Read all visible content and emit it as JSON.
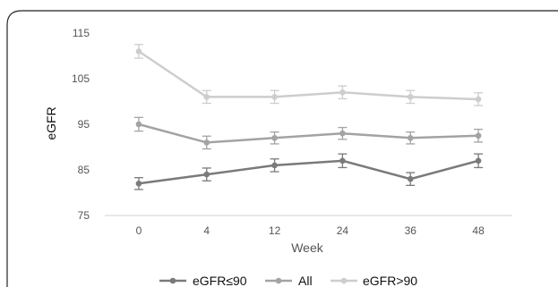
{
  "chart_data": {
    "type": "line",
    "title": "",
    "xlabel": "Week",
    "ylabel": "eGFR",
    "categories": [
      "0",
      "4",
      "12",
      "24",
      "36",
      "48"
    ],
    "yticks": [
      "75",
      "85",
      "95",
      "105",
      "115"
    ],
    "ylim": [
      75,
      115
    ],
    "grid": false,
    "legend_position": "bottom",
    "error_bars": true,
    "series": [
      {
        "name": "eGFR≤90",
        "color": "#7a7a7a",
        "values": [
          82,
          84,
          86,
          87,
          83,
          87
        ],
        "error": [
          1.3,
          1.4,
          1.4,
          1.5,
          1.4,
          1.5
        ]
      },
      {
        "name": "All",
        "color": "#a3a3a3",
        "values": [
          95,
          91,
          92,
          93,
          92,
          92.5
        ],
        "error": [
          1.5,
          1.4,
          1.3,
          1.3,
          1.3,
          1.4
        ]
      },
      {
        "name": "eGFR>90",
        "color": "#cdcdcd",
        "values": [
          111,
          101,
          101,
          102,
          101,
          100.5
        ],
        "error": [
          1.5,
          1.4,
          1.4,
          1.4,
          1.4,
          1.4
        ]
      }
    ]
  }
}
